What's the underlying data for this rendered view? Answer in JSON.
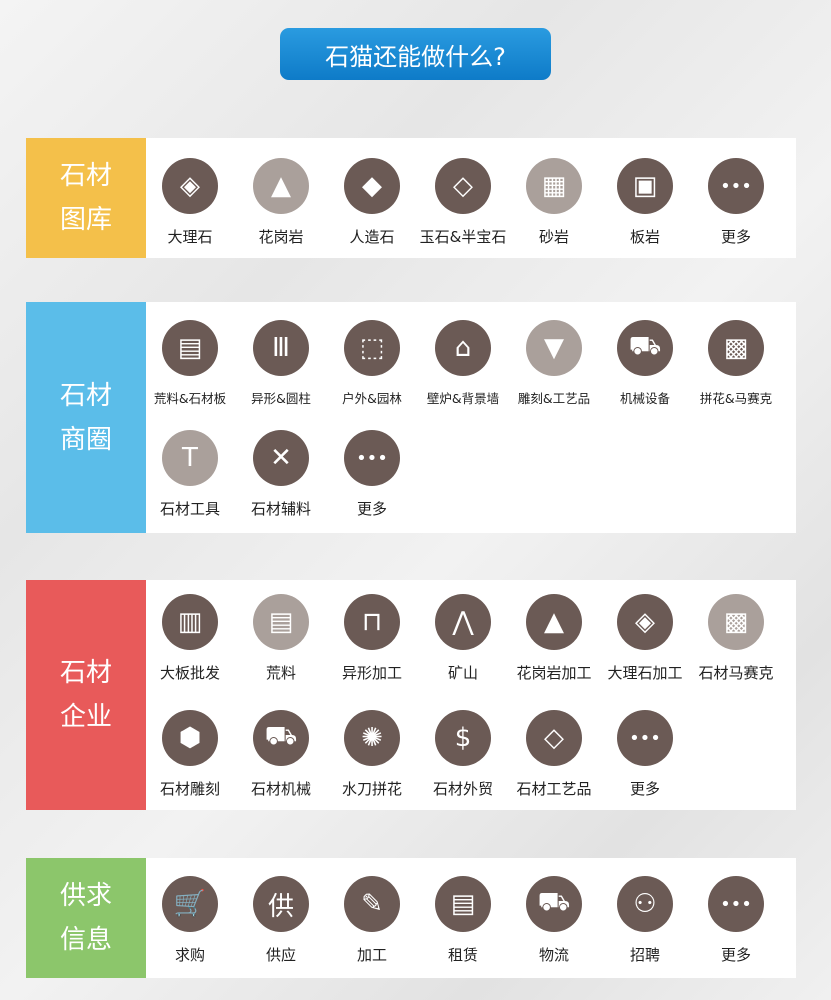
{
  "title": "石猫还能做什么?",
  "colors": {
    "dark": "#6b5a55",
    "light": "#aaa09b",
    "yellow": "#f4c04a",
    "blue": "#5bbde9",
    "red": "#e85a5a",
    "green": "#8cc66b"
  },
  "sections": [
    {
      "id": "gallery",
      "label": [
        "石材",
        "图库"
      ],
      "color": "#f4c04a",
      "items": [
        {
          "label": "大理石",
          "icon": "layers-icon",
          "glyph": "◈"
        },
        {
          "label": "花岗岩",
          "icon": "mountain-icon",
          "glyph": "▲",
          "light": true
        },
        {
          "label": "人造石",
          "icon": "diamond-logo-icon",
          "glyph": "◆"
        },
        {
          "label": "玉石&半宝石",
          "icon": "gem-icon",
          "glyph": "◇"
        },
        {
          "label": "砂岩",
          "icon": "grid-stone-icon",
          "glyph": "▦",
          "light": true
        },
        {
          "label": "板岩",
          "icon": "slab-icon",
          "glyph": "▣"
        },
        {
          "label": "更多",
          "icon": "more-icon",
          "glyph": "•••"
        }
      ]
    },
    {
      "id": "market",
      "label": [
        "石材",
        "商圈"
      ],
      "color": "#5bbde9",
      "small": true,
      "items": [
        {
          "label": "荒料&石材板",
          "icon": "bricks-icon",
          "glyph": "▤"
        },
        {
          "label": "异形&圆柱",
          "icon": "column-icon",
          "glyph": "Ⅲ"
        },
        {
          "label": "户外&园林",
          "icon": "garden-box-icon",
          "glyph": "⬚"
        },
        {
          "label": "壁炉&背景墙",
          "icon": "fireplace-icon",
          "glyph": "⌂"
        },
        {
          "label": "雕刻&工艺品",
          "icon": "carving-icon",
          "glyph": "▼",
          "light": true
        },
        {
          "label": "机械设备",
          "icon": "forklift-icon",
          "glyph": "⛟"
        },
        {
          "label": "拼花&马赛克",
          "icon": "mosaic-icon",
          "glyph": "▩"
        },
        {
          "label": "石材工具",
          "icon": "hammer-icon",
          "glyph": "T",
          "light": true,
          "big": true
        },
        {
          "label": "石材辅料",
          "icon": "cross-arrows-icon",
          "glyph": "✕",
          "big": true
        },
        {
          "label": "更多",
          "icon": "more-icon",
          "glyph": "•••",
          "big": true
        }
      ]
    },
    {
      "id": "company",
      "label": [
        "石材",
        "企业"
      ],
      "color": "#e85a5a",
      "items": [
        {
          "label": "大板批发",
          "icon": "slabs-icon",
          "glyph": "▥"
        },
        {
          "label": "荒料",
          "icon": "bricks-icon",
          "glyph": "▤",
          "light": true
        },
        {
          "label": "异形加工",
          "icon": "arch-icon",
          "glyph": "⊓"
        },
        {
          "label": "矿山",
          "icon": "mountain-icon",
          "glyph": "⋀"
        },
        {
          "label": "花岗岩加工",
          "icon": "mountain-icon",
          "glyph": "▲"
        },
        {
          "label": "大理石加工",
          "icon": "layers-icon",
          "glyph": "◈"
        },
        {
          "label": "石材马赛克",
          "icon": "mosaic-icon",
          "glyph": "▩",
          "light": true
        },
        {
          "label": "石材雕刻",
          "icon": "cube-icon",
          "glyph": "⬢"
        },
        {
          "label": "石材机械",
          "icon": "bulldozer-icon",
          "glyph": "⛟"
        },
        {
          "label": "水刀拼花",
          "icon": "starburst-icon",
          "glyph": "✺"
        },
        {
          "label": "石材外贸",
          "icon": "dollar-icon",
          "glyph": "$"
        },
        {
          "label": "石材工艺品",
          "icon": "diamond-logo-icon",
          "glyph": "◇"
        },
        {
          "label": "更多",
          "icon": "more-icon",
          "glyph": "•••"
        }
      ]
    },
    {
      "id": "supply",
      "label": [
        "供求",
        "信息"
      ],
      "color": "#8cc66b",
      "items": [
        {
          "label": "求购",
          "icon": "cart-icon",
          "glyph": "🛒"
        },
        {
          "label": "供应",
          "icon": "supply-person-icon",
          "glyph": "供"
        },
        {
          "label": "加工",
          "icon": "ruler-pencil-icon",
          "glyph": "✎"
        },
        {
          "label": "租赁",
          "icon": "clipboard-icon",
          "glyph": "▤"
        },
        {
          "label": "物流",
          "icon": "truck-icon",
          "glyph": "⛟"
        },
        {
          "label": "招聘",
          "icon": "add-user-icon",
          "glyph": "⚇"
        },
        {
          "label": "更多",
          "icon": "more-icon",
          "glyph": "•••"
        }
      ]
    }
  ]
}
